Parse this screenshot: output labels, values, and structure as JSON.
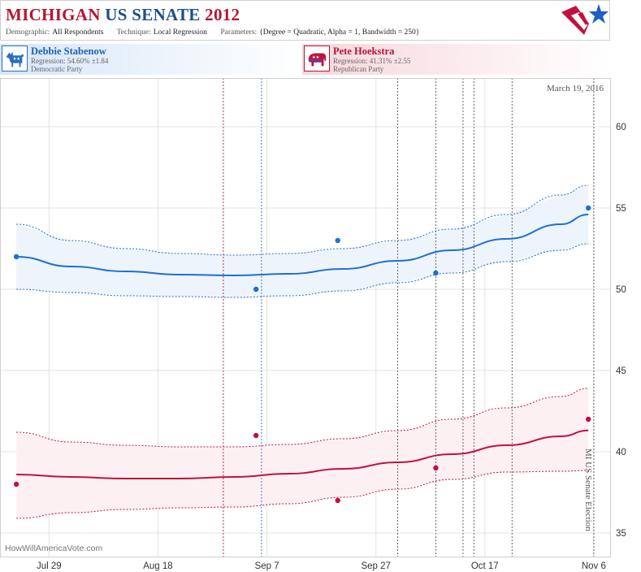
{
  "header": {
    "title_state": "MICHIGAN",
    "title_race": "US SENATE",
    "title_year": "2012",
    "demographic_label": "Demographic:",
    "demographic_value": "All Respondents",
    "technique_label": "Technique:",
    "technique_value": "Local Regression",
    "parameters_label": "Parameters:",
    "parameters_value": "{Degree = Quadratic, Alpha = 1, Bandwidth = 250}",
    "logo_icon": "star-flag-logo-icon"
  },
  "candidates": [
    {
      "name": "Debbie Stabenow",
      "regression": "Regression: 54.60% ±1.84",
      "party": "Democratic Party",
      "icon": "donkey-icon",
      "color": "#1f6fd1"
    },
    {
      "name": "Pete Hoekstra",
      "regression": "Regression: 41.31% ±2.55",
      "party": "Republican Party",
      "icon": "elephant-icon",
      "color": "#c1123f"
    }
  ],
  "chart_labels": {
    "date_stamp": "March 19, 2016",
    "watermark": "HowWillAmericaVote.com",
    "election_label": "MI US Senate Election"
  },
  "chart_data": {
    "type": "line",
    "x_ticks": [
      "Jul 29",
      "Aug 18",
      "Sep 7",
      "Sep 27",
      "Oct 17",
      "Nov 6"
    ],
    "y_ticks": [
      "35",
      "40",
      "45",
      "50",
      "55",
      "60"
    ],
    "xlim": [
      "2012-07-20",
      "2012-11-09"
    ],
    "ylim": [
      33.5,
      63
    ],
    "grid": true,
    "series": [
      {
        "name": "Debbie Stabenow",
        "color": "#1f6fd1",
        "band_fill": "#eef4fb",
        "curve_x": [
          "2012-07-23",
          "2012-08-02",
          "2012-08-12",
          "2012-08-22",
          "2012-09-01",
          "2012-09-11",
          "2012-09-21",
          "2012-10-01",
          "2012-10-11",
          "2012-10-21",
          "2012-10-31",
          "2012-11-05"
        ],
        "curve_y": [
          52.0,
          51.4,
          51.1,
          50.9,
          50.85,
          50.95,
          51.25,
          51.75,
          52.4,
          53.1,
          54.0,
          54.6
        ],
        "upper_y": [
          54.0,
          53.0,
          52.5,
          52.2,
          52.1,
          52.2,
          52.5,
          53.0,
          53.7,
          54.6,
          55.8,
          56.4
        ],
        "lower_y": [
          50.0,
          49.8,
          49.6,
          49.55,
          49.5,
          49.6,
          49.9,
          50.4,
          51.0,
          51.7,
          52.4,
          52.8
        ],
        "points": [
          {
            "x": "2012-07-23",
            "y": 52
          },
          {
            "x": "2012-09-05",
            "y": 50
          },
          {
            "x": "2012-09-20",
            "y": 53
          },
          {
            "x": "2012-10-08",
            "y": 51
          },
          {
            "x": "2012-11-05",
            "y": 55
          }
        ]
      },
      {
        "name": "Pete Hoekstra",
        "color": "#c1123f",
        "band_fill": "#fdf0f3",
        "curve_x": [
          "2012-07-23",
          "2012-08-02",
          "2012-08-12",
          "2012-08-22",
          "2012-09-01",
          "2012-09-11",
          "2012-09-21",
          "2012-10-01",
          "2012-10-11",
          "2012-10-21",
          "2012-10-31",
          "2012-11-05"
        ],
        "curve_y": [
          38.6,
          38.45,
          38.35,
          38.35,
          38.45,
          38.65,
          38.95,
          39.35,
          39.85,
          40.4,
          40.95,
          41.31
        ],
        "upper_y": [
          41.2,
          40.6,
          40.4,
          40.3,
          40.3,
          40.45,
          40.8,
          41.3,
          42.0,
          42.7,
          43.4,
          43.9
        ],
        "lower_y": [
          35.9,
          36.25,
          36.45,
          36.55,
          36.6,
          36.8,
          37.2,
          37.7,
          38.3,
          38.75,
          38.8,
          38.85
        ],
        "points": [
          {
            "x": "2012-07-23",
            "y": 38
          },
          {
            "x": "2012-09-05",
            "y": 41
          },
          {
            "x": "2012-09-20",
            "y": 37
          },
          {
            "x": "2012-10-08",
            "y": 39
          },
          {
            "x": "2012-11-05",
            "y": 42
          }
        ]
      }
    ],
    "event_lines": [
      {
        "x": "2012-08-30",
        "color": "#b5162f"
      },
      {
        "x": "2012-09-06",
        "color": "#2a6fbf"
      },
      {
        "x": "2012-10-01",
        "color": "#555555"
      },
      {
        "x": "2012-10-08",
        "color": "#555555"
      },
      {
        "x": "2012-10-13",
        "color": "#555555"
      },
      {
        "x": "2012-10-15",
        "color": "#555555"
      },
      {
        "x": "2012-10-22",
        "color": "#555555"
      },
      {
        "x": "2012-11-06",
        "color": "#555555"
      }
    ]
  }
}
